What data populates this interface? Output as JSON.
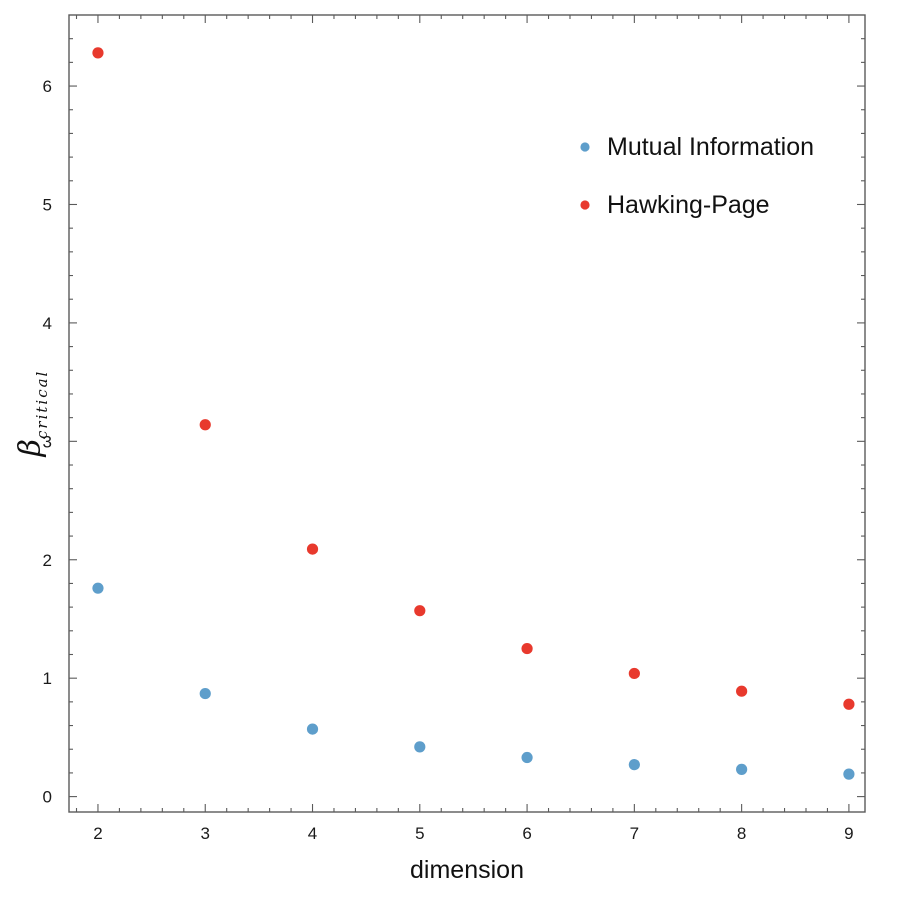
{
  "chart_data": {
    "type": "scatter",
    "xlabel": "dimension",
    "ylabel": {
      "symbol": "β",
      "subscript": "critical"
    },
    "xlim": [
      1.73,
      9.15
    ],
    "ylim": [
      -0.13,
      6.6
    ],
    "xticks": [
      2,
      3,
      4,
      5,
      6,
      7,
      8,
      9
    ],
    "yticks": [
      0,
      1,
      2,
      3,
      4,
      5,
      6
    ],
    "grid": false,
    "legend_position": "top-right",
    "series": [
      {
        "name": "Mutual Information",
        "color": "#5e9ecb",
        "x": [
          2,
          3,
          4,
          5,
          6,
          7,
          8,
          9
        ],
        "y": [
          1.76,
          0.87,
          0.57,
          0.42,
          0.33,
          0.27,
          0.23,
          0.19
        ]
      },
      {
        "name": "Hawking-Page",
        "color": "#e8392d",
        "x": [
          2,
          3,
          4,
          5,
          6,
          7,
          8,
          9
        ],
        "y": [
          6.28,
          3.14,
          2.09,
          1.57,
          1.25,
          1.04,
          0.89,
          0.78
        ]
      }
    ]
  }
}
